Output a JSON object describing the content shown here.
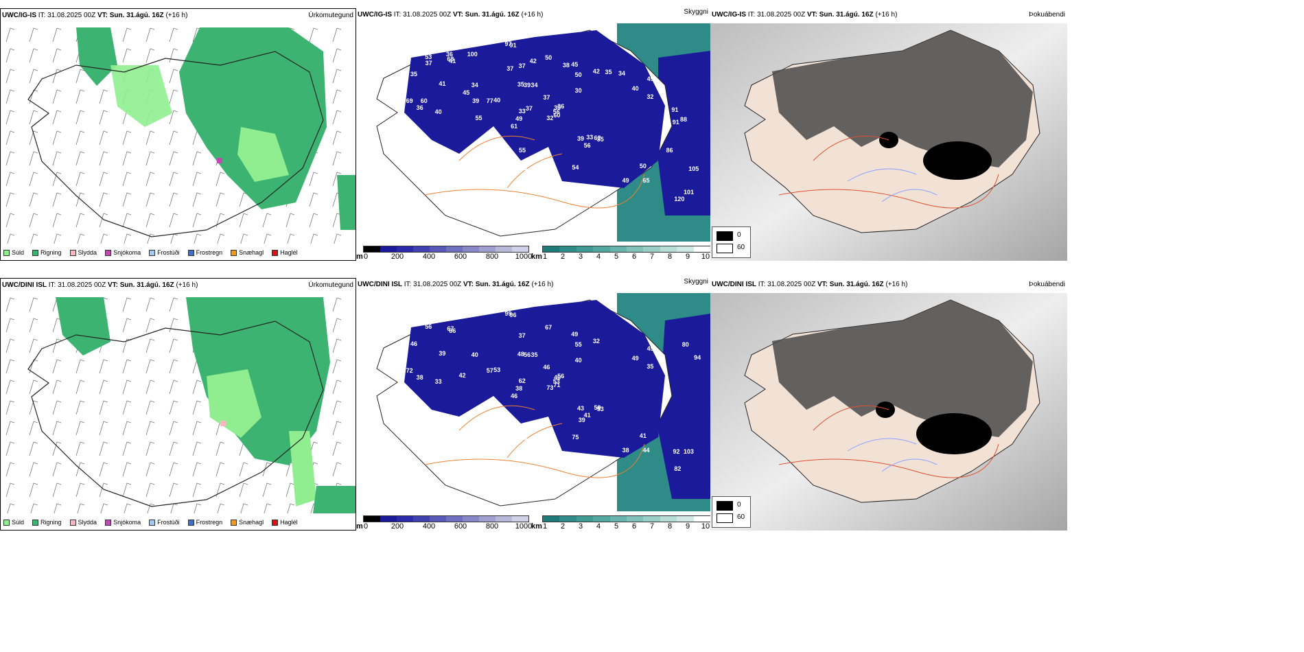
{
  "rows": [
    {
      "model": "UWC/IG-IS",
      "precip": {
        "model": "UWC/IG-IS",
        "it_label": "IT:",
        "it_value": "31.08.2025 00Z",
        "vt_label": "VT:",
        "vt_value": "Sun. 31.ágú. 16Z",
        "lead": "(+16 h)",
        "right_label": "Úrkomutegund"
      },
      "cloud": {
        "model": "UWC/IG-IS",
        "it_label": "IT:",
        "it_value": "31.08.2025 00Z",
        "vt_label": "VT:",
        "vt_value": "Sun. 31.ágú. 16Z",
        "lead": "(+16 h)",
        "right_label": "Skyggni",
        "labels": [
          "91",
          "86",
          "97",
          "100",
          "39",
          "39",
          "45",
          "34",
          "50",
          "32",
          "41",
          "65",
          "40",
          "49",
          "61",
          "30",
          "35",
          "35",
          "37",
          "36",
          "40",
          "43",
          "45",
          "39",
          "36",
          "35",
          "41",
          "37",
          "36",
          "39",
          "32",
          "49",
          "45",
          "33",
          "34",
          "42",
          "59",
          "49",
          "50",
          "62",
          "50",
          "77",
          "91",
          "105",
          "120",
          "69",
          "56",
          "51",
          "46",
          "60",
          "64",
          "40",
          "35",
          "56",
          "54",
          "70",
          "68",
          "53",
          "34",
          "34",
          "42",
          "55",
          "60",
          "45",
          "35",
          "36",
          "38",
          "37",
          "37",
          "45",
          "55",
          "40",
          "33",
          "39",
          "44",
          "37",
          "91",
          "86",
          "88",
          "101"
        ]
      },
      "fog": {
        "model": "UWC/IG-IS",
        "it_label": "IT:",
        "it_value": "31.08.2025 00Z",
        "vt_label": "VT:",
        "vt_value": "Sun. 31.ágú. 16Z",
        "lead": "(+16 h)",
        "right_label": "Þokuábendi"
      }
    },
    {
      "model": "UWC/DINI ISL",
      "precip": {
        "model": "UWC/DINI ISL",
        "it_label": "IT:",
        "it_value": "31.08.2025 00Z",
        "vt_label": "VT:",
        "vt_value": "Sun. 31.ágú. 16Z",
        "lead": "(+16 h)",
        "right_label": "Úrkomutegund"
      },
      "cloud": {
        "model": "UWC/DINI ISL",
        "it_label": "IT:",
        "it_value": "31.08.2025 00Z",
        "vt_label": "VT:",
        "vt_value": "Sun. 31.ágú. 16Z",
        "lead": "(+16 h)",
        "right_label": "Skyggni",
        "labels": [
          "96",
          "92",
          "99",
          "49",
          "40",
          "31",
          "49",
          "35",
          "55",
          "73",
          "66",
          "44",
          "33",
          "45",
          "46",
          "40",
          "59",
          "48",
          "46",
          "40",
          "53",
          "36",
          "48",
          "56",
          "56",
          "53",
          "39",
          "37",
          "38",
          "43",
          "35",
          "38",
          "40",
          "62",
          "40",
          "32",
          "38",
          "38",
          "41",
          "59",
          "67",
          "57",
          "42",
          "39",
          "82",
          "72",
          "53",
          "40",
          "35",
          "71",
          "46",
          "49",
          "46",
          "41",
          "75",
          "92",
          "67",
          "56",
          "103",
          "94",
          "80"
        ]
      },
      "fog": {
        "model": "UWC/DINI ISL",
        "it_label": "IT:",
        "it_value": "31.08.2025 00Z",
        "vt_label": "VT:",
        "vt_value": "Sun. 31.ágú. 16Z",
        "lead": "(+16 h)",
        "right_label": "Þokuábendi"
      }
    }
  ],
  "precip_legend": [
    {
      "label": "Súld",
      "color": "#90ee90"
    },
    {
      "label": "Rigning",
      "color": "#3cb371"
    },
    {
      "label": "Slydda",
      "color": "#ffb6c1"
    },
    {
      "label": "Snjókoma",
      "color": "#c04bb0"
    },
    {
      "label": "Frostúði",
      "color": "#a4c8f0"
    },
    {
      "label": "Frostregn",
      "color": "#3b6fd0"
    },
    {
      "label": "Snæhagl",
      "color": "#f39c12"
    },
    {
      "label": "Haglél",
      "color": "#e01010"
    }
  ],
  "cloud_base_bar": {
    "unit": "m",
    "ticks": [
      "0",
      "200",
      "400",
      "600",
      "800",
      "1000"
    ],
    "colors": [
      "#000000",
      "#1a1a9a",
      "#2a2aaa",
      "#4040b0",
      "#5858b8",
      "#7070c0",
      "#8888c8",
      "#a0a0d0",
      "#b8b8d8",
      "#d0d0e8"
    ]
  },
  "visibility_bar": {
    "unit": "km",
    "ticks": [
      "1",
      "2",
      "3",
      "4",
      "5",
      "6",
      "7",
      "8",
      "9",
      "10"
    ],
    "colors": [
      "#1f7a7a",
      "#2e8b87",
      "#3f9a94",
      "#52a8a0",
      "#68b5ad",
      "#80c2ba",
      "#9acfc8",
      "#b6ddd6",
      "#d2eae6",
      "#ffffff"
    ]
  },
  "fog_legend": [
    {
      "label": "0",
      "color": "#000000"
    },
    {
      "label": "60",
      "color": "#ffffff"
    }
  ]
}
